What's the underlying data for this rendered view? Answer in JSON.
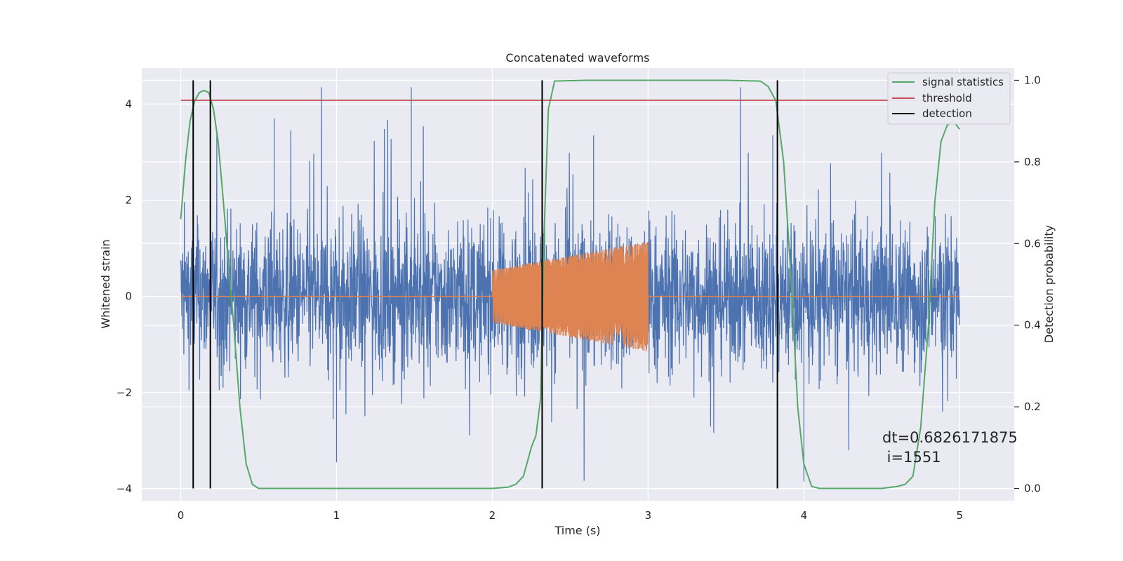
{
  "chart_data": {
    "type": "line",
    "title": "Concatenated waveforms",
    "xlabel": "Time (s)",
    "ylabel": "Whitened strain",
    "y2label": "Detection probability",
    "xlim": [
      -0.25,
      5.35
    ],
    "ylim": [
      -4.25,
      4.75
    ],
    "y2lim": [
      -0.03,
      1.03
    ],
    "xticks": [
      0,
      1,
      2,
      3,
      4,
      5
    ],
    "yticks": [
      -4,
      -2,
      0,
      2,
      4
    ],
    "y2ticks": [
      0.0,
      0.2,
      0.4,
      0.6,
      0.8,
      1.0
    ],
    "xtick_labels": [
      "0",
      "1",
      "2",
      "3",
      "4",
      "5"
    ],
    "ytick_labels": [
      "−4",
      "−2",
      "0",
      "2",
      "4"
    ],
    "y2tick_labels": [
      "0.0",
      "0.2",
      "0.4",
      "0.6",
      "0.8",
      "1.0"
    ],
    "grid": true,
    "legend_position": "top-right",
    "colors": {
      "noise": "#4c72b0",
      "injection": "#dd8452",
      "signal_statistics": "#55a868",
      "threshold": "#c44e52",
      "detection": "#000000",
      "axes_bg": "#eaeaf2"
    },
    "noise_series": {
      "description_free": true,
      "x_range": [
        0,
        5
      ],
      "typical_amplitude": 1.0,
      "peak_max": 4.35,
      "peak_min": -3.85
    },
    "injection_series": {
      "x_range": [
        2.0,
        3.0
      ],
      "amplitude_start": 0.55,
      "amplitude_end": 1.15,
      "flat_zero_elsewhere": [
        0,
        5
      ]
    },
    "series": [
      {
        "name": "signal statistics",
        "axis": "right",
        "x": [
          0.0,
          0.03,
          0.06,
          0.09,
          0.12,
          0.15,
          0.18,
          0.21,
          0.24,
          0.27,
          0.3,
          0.34,
          0.38,
          0.42,
          0.46,
          0.5,
          1.0,
          1.5,
          2.0,
          2.1,
          2.15,
          2.2,
          2.25,
          2.28,
          2.31,
          2.33,
          2.36,
          2.4,
          2.6,
          3.0,
          3.5,
          3.72,
          3.77,
          3.82,
          3.87,
          3.92,
          3.96,
          4.0,
          4.05,
          4.1,
          4.5,
          4.6,
          4.65,
          4.7,
          4.75,
          4.8,
          4.84,
          4.88,
          4.92,
          4.96,
          4.98,
          5.0
        ],
        "y": [
          0.66,
          0.8,
          0.9,
          0.95,
          0.97,
          0.975,
          0.97,
          0.93,
          0.85,
          0.72,
          0.58,
          0.4,
          0.2,
          0.06,
          0.01,
          0.0,
          0.0,
          0.0,
          0.0,
          0.003,
          0.01,
          0.03,
          0.1,
          0.13,
          0.22,
          0.6,
          0.93,
          0.998,
          1.0,
          1.0,
          1.0,
          0.998,
          0.985,
          0.95,
          0.8,
          0.5,
          0.2,
          0.06,
          0.005,
          0.0,
          0.0,
          0.005,
          0.01,
          0.03,
          0.15,
          0.4,
          0.7,
          0.85,
          0.89,
          0.9,
          0.89,
          0.88
        ]
      },
      {
        "name": "threshold",
        "axis": "right",
        "x": [
          0,
          5
        ],
        "y": [
          0.951,
          0.951
        ]
      },
      {
        "name": "detection",
        "axis": "right",
        "vlines": [
          0.08,
          0.19,
          2.32,
          3.83
        ],
        "ymin": 0.0,
        "ymax": 1.0
      }
    ],
    "legend": [
      "signal statistics",
      "threshold",
      "detection"
    ],
    "annotation": {
      "line1": "dt=0.6826171875",
      "line2": " i=1551"
    }
  }
}
